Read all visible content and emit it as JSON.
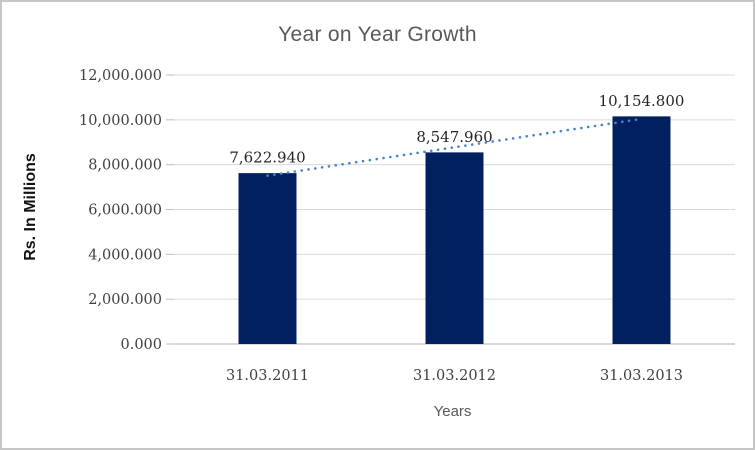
{
  "chart_data": {
    "type": "bar",
    "title": "Year on Year Growth",
    "xlabel": "Years",
    "ylabel": "Rs. In Millions",
    "categories": [
      "31.03.2011",
      "31.03.2012",
      "31.03.2013"
    ],
    "series": [
      {
        "name": "Rs. In Millions",
        "values": [
          7622.94,
          8547.96,
          10154.8
        ]
      }
    ],
    "data_labels": [
      "7,622.940",
      "8,547.960",
      "10,154.800"
    ],
    "y_ticks": [
      "0.000",
      "2,000.000",
      "4,000.000",
      "6,000.000",
      "8,000.000",
      "10,000.000",
      "12,000.000"
    ],
    "ylim": [
      0,
      12000
    ],
    "y_step": 2000,
    "grid": true,
    "legend": "none",
    "trendline": {
      "type": "linear",
      "style": "dotted"
    },
    "colors": {
      "bar": "#02205f",
      "trendline": "#4584c8",
      "gridline": "#d9d9d9",
      "axis_line": "#bfbfbf",
      "tick_label": "#404040",
      "data_label": "#262626",
      "title": "#595959",
      "axis_title": "#595959",
      "y_axis_title": "#111111",
      "frame_border": "#c6c6c6",
      "background": "#ffffff"
    }
  }
}
